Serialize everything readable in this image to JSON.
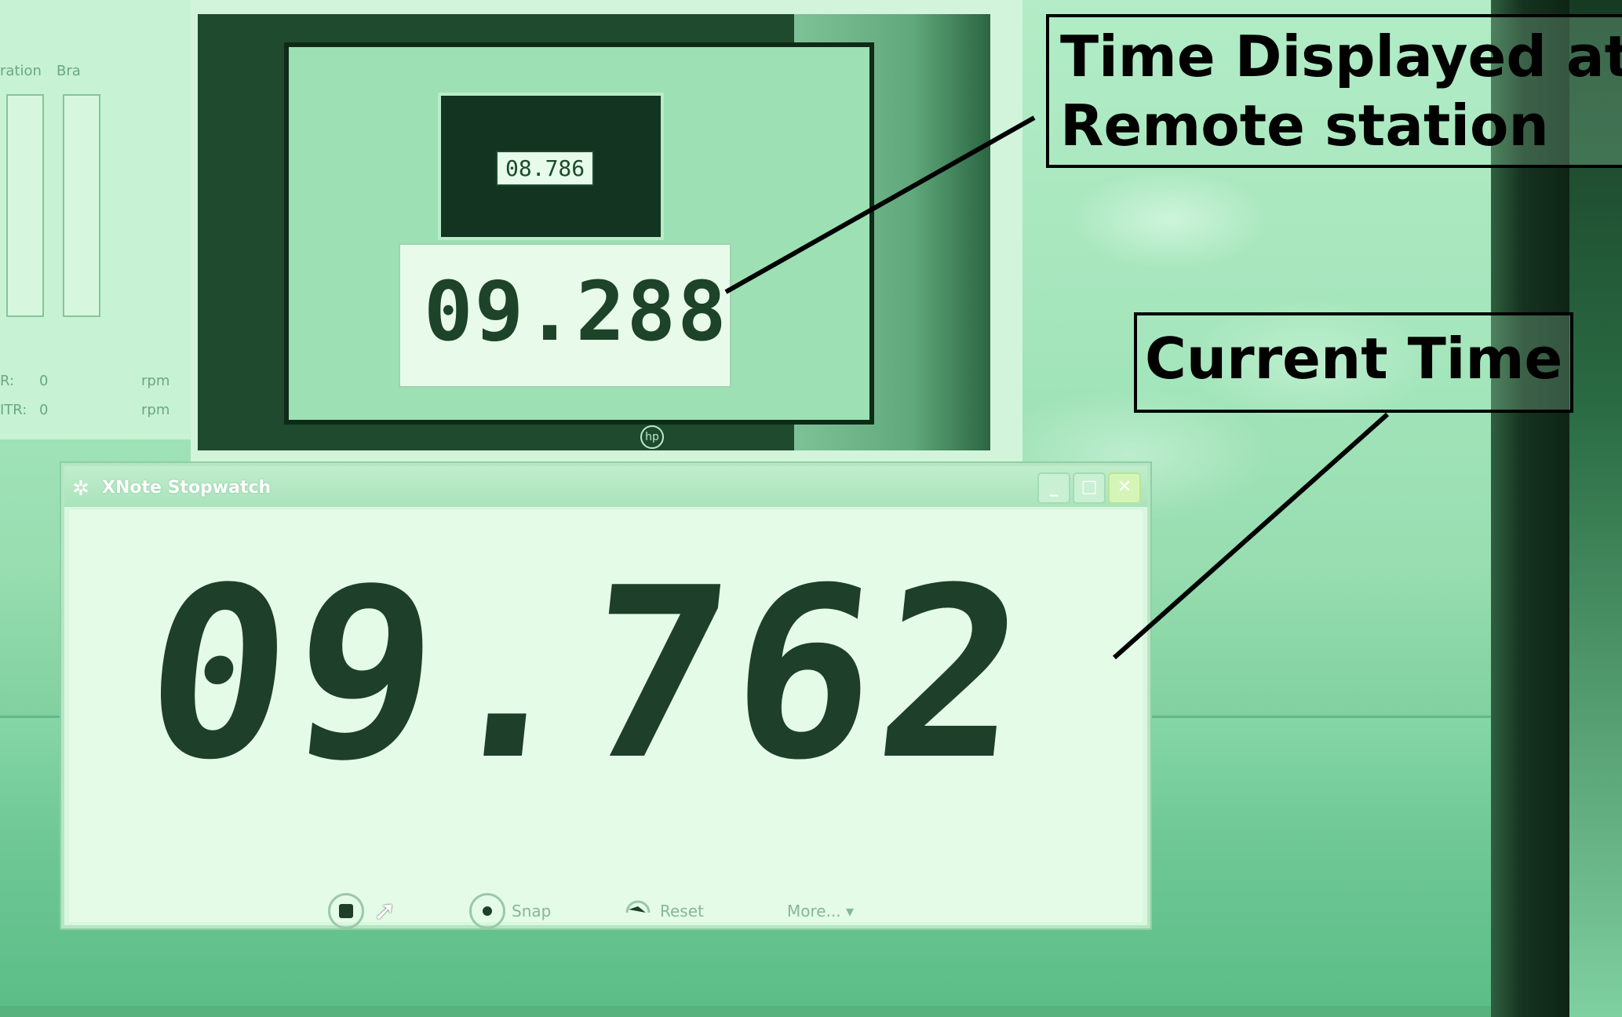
{
  "left_app": {
    "label_top_1": "ration",
    "label_top_2": "Bra",
    "row1_label": "R:",
    "row1_value": "0",
    "row1_unit": "rpm",
    "row2_label": "ITR:",
    "row2_value": "0",
    "row2_unit": "rpm"
  },
  "remote_view": {
    "small_time": "08.786",
    "stopwatch_time": "09.288",
    "monitor_brand_icon": "hp-logo-icon"
  },
  "stopwatch": {
    "title": "XNote Stopwatch",
    "time": "09.762",
    "buttons": {
      "snap_label": "Snap",
      "reset_label": "Reset",
      "more_label": "More... ▾"
    },
    "window_controls": [
      "minimize",
      "maximize",
      "close"
    ]
  },
  "annotations": {
    "remote_line1": "Time Displayed at",
    "remote_line2": "Remote station",
    "current": "Current Time"
  },
  "colors": {
    "tint": "#9fe3b8",
    "digits": "#1e3f29",
    "annotation": "#000000"
  }
}
